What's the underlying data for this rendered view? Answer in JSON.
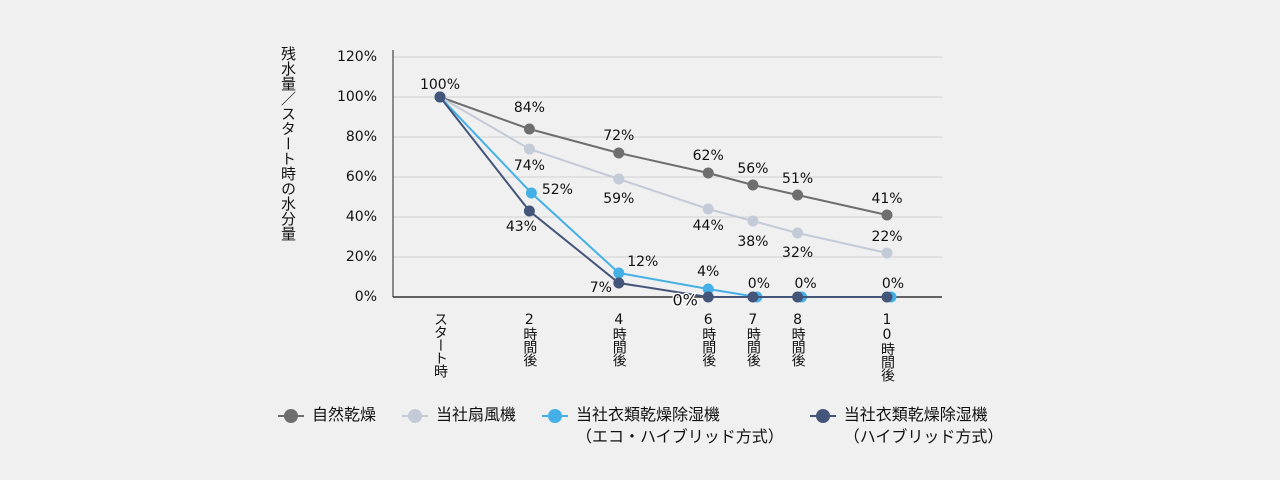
{
  "chart_data": {
    "type": "line",
    "ylabel": "残水量／スタート時の水分量",
    "x_categories": [
      "スタート時",
      "2時間後",
      "4時間後",
      "6時間後",
      "7時間後",
      "8時間後",
      "10時間後"
    ],
    "x_hours": [
      0,
      2,
      4,
      6,
      7,
      8,
      10
    ],
    "ylim": [
      0,
      120
    ],
    "y_ticks": [
      "0%",
      "20%",
      "40%",
      "60%",
      "80%",
      "100%",
      "120%"
    ],
    "y_tick_values": [
      0,
      20,
      40,
      60,
      80,
      100,
      120
    ],
    "grid": true,
    "legend_position": "bottom",
    "series": [
      {
        "name": "自然乾燥",
        "color": "#6e6e6e",
        "values": [
          100,
          84,
          72,
          62,
          56,
          51,
          41
        ],
        "labels": [
          "100%",
          "84%",
          "72%",
          "62%",
          "56%",
          "51%",
          "41%"
        ]
      },
      {
        "name": "当社扇風機",
        "color": "#c3cad8",
        "values": [
          100,
          74,
          59,
          44,
          38,
          32,
          22
        ],
        "labels": [
          "",
          "74%",
          "59%",
          "44%",
          "38%",
          "32%",
          "22%"
        ]
      },
      {
        "name": "当社衣類乾燥除湿機\n（エコ・ハイブリッド方式）",
        "color": "#45b0e6",
        "values": [
          100,
          52,
          12,
          4,
          0,
          0,
          0
        ],
        "labels": [
          "",
          "52%",
          "12%",
          "4%",
          "0%",
          "0%",
          "0%"
        ]
      },
      {
        "name": "当社衣類乾燥除湿機\n（ハイブリッド方式）",
        "color": "#44557a",
        "values": [
          100,
          43,
          7,
          0,
          0,
          0,
          0
        ],
        "labels": [
          "",
          "43%",
          "7%",
          "0%",
          "",
          "",
          ""
        ]
      }
    ]
  }
}
